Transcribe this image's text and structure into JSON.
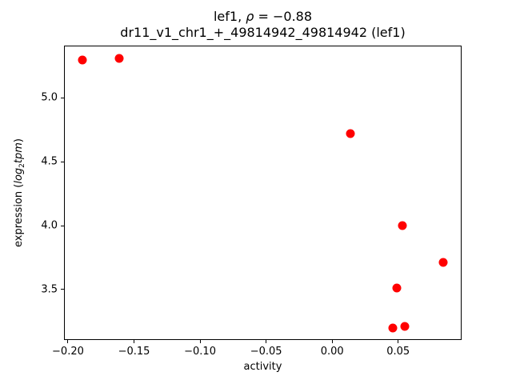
{
  "chart_data": {
    "type": "scatter",
    "title": {
      "prefix": "lef1, ",
      "rho_symbol": "ρ",
      "rho_value": " = −0.88"
    },
    "subtitle": "dr11_v1_chr1_+_49814942_49814942 (lef1)",
    "xlabel": "activity",
    "ylabel": {
      "prefix": "expression (",
      "log": "log",
      "sub": "2",
      "var": "tpm",
      "suffix": ")"
    },
    "marker_color": "#ff0000",
    "marker_diameter_px": 11,
    "xlim": [
      -0.203,
      0.098
    ],
    "ylim": [
      3.105,
      5.41
    ],
    "grid": false,
    "legend": "none",
    "xticks": {
      "values": [
        -0.2,
        -0.15,
        -0.1,
        -0.05,
        0.0,
        0.05
      ],
      "labels": [
        "−0.20",
        "−0.15",
        "−0.10",
        "−0.05",
        "0.00",
        "0.05"
      ]
    },
    "yticks": {
      "values": [
        3.5,
        4.0,
        4.5,
        5.0
      ],
      "labels": [
        "3.5",
        "4.0",
        "4.5",
        "5.0"
      ]
    },
    "points": [
      [
        -0.189,
        5.3
      ],
      [
        -0.161,
        5.31
      ],
      [
        0.014,
        4.72
      ],
      [
        0.053,
        4.0
      ],
      [
        0.084,
        3.71
      ],
      [
        0.049,
        3.51
      ],
      [
        0.046,
        3.2
      ],
      [
        0.055,
        3.21
      ]
    ]
  }
}
